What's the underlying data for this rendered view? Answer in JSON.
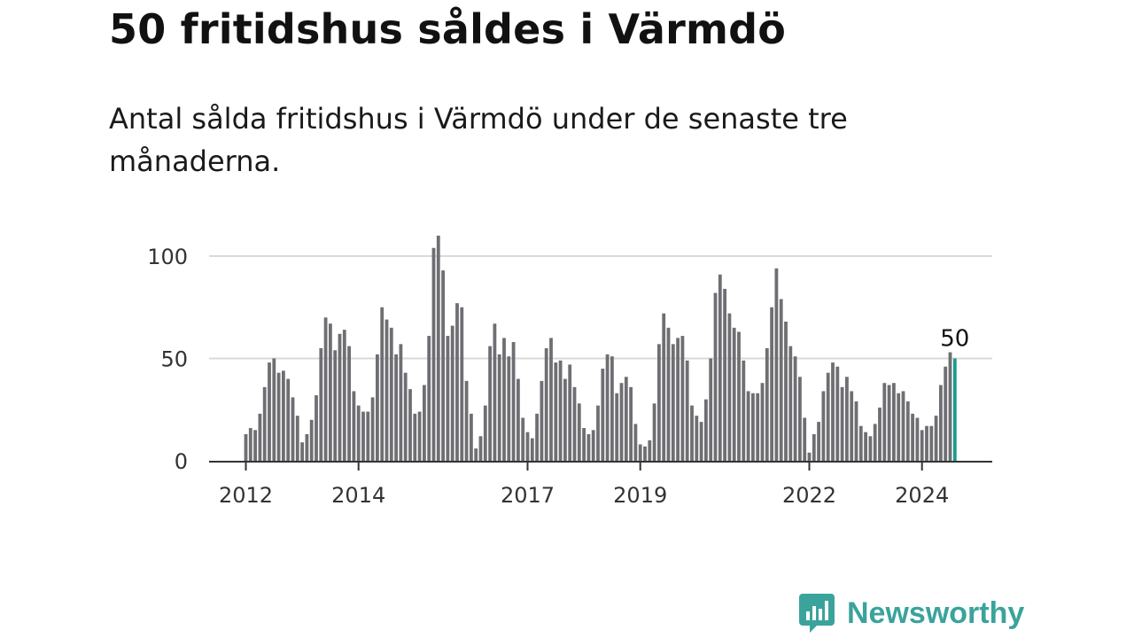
{
  "title": "50 fritidshus såldes i Värmdö",
  "subtitle": "Antal sålda fritidshus i Värmdö under de senaste tre månaderna.",
  "brand": {
    "name": "Newsworthy",
    "color": "#3aa39c",
    "icon": "bar-chart-speech-bubble-icon"
  },
  "colors": {
    "bar": "#6e6e73",
    "highlight": "#1a9a8f",
    "grid": "#d9d9d9",
    "axis": "#333333"
  },
  "chart_data": {
    "type": "bar",
    "title": "50 fritidshus såldes i Värmdö",
    "xlabel": "",
    "ylabel": "",
    "ylim": [
      0,
      120
    ],
    "yticks": [
      0,
      50,
      100
    ],
    "grid": true,
    "x_start_year": 2012,
    "xticks": [
      "2012",
      "2014",
      "2017",
      "2019",
      "2022",
      "2024"
    ],
    "highlight_label": "50",
    "values": [
      13,
      16,
      15,
      23,
      36,
      48,
      50,
      43,
      44,
      40,
      31,
      22,
      9,
      13,
      20,
      32,
      55,
      70,
      67,
      54,
      62,
      64,
      56,
      34,
      27,
      24,
      24,
      31,
      52,
      75,
      69,
      65,
      52,
      57,
      43,
      35,
      23,
      24,
      37,
      61,
      104,
      110,
      93,
      61,
      66,
      77,
      75,
      39,
      23,
      6,
      12,
      27,
      56,
      67,
      52,
      60,
      51,
      58,
      40,
      21,
      14,
      11,
      23,
      39,
      55,
      60,
      48,
      49,
      40,
      47,
      36,
      28,
      16,
      13,
      15,
      27,
      45,
      52,
      51,
      33,
      38,
      41,
      36,
      18,
      8,
      7,
      10,
      28,
      57,
      72,
      65,
      57,
      60,
      61,
      49,
      27,
      22,
      19,
      30,
      50,
      82,
      91,
      84,
      72,
      65,
      63,
      49,
      34,
      33,
      33,
      38,
      55,
      75,
      94,
      79,
      68,
      56,
      51,
      41,
      21,
      4,
      13,
      19,
      34,
      43,
      48,
      46,
      36,
      41,
      34,
      29,
      17,
      14,
      12,
      18,
      26,
      38,
      37,
      38,
      33,
      34,
      29,
      23,
      21,
      15,
      17,
      17,
      22,
      37,
      46,
      53,
      50
    ]
  }
}
